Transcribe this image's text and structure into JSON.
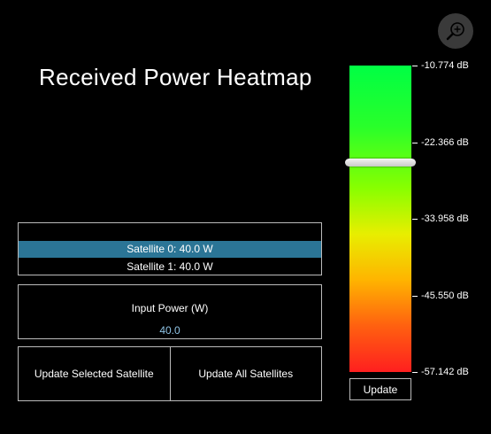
{
  "title": "Received Power Heatmap",
  "zoom": {
    "icon": "zoom-in-icon"
  },
  "satellites": {
    "items": [
      {
        "label": "",
        "selected": false
      },
      {
        "label": "Satellite 0: 40.0 W",
        "selected": true
      },
      {
        "label": "Satellite 1: 40.0 W",
        "selected": false
      }
    ]
  },
  "power": {
    "label": "Input Power (W)",
    "value": "40.0"
  },
  "actions": {
    "update_selected": "Update Selected Satellite",
    "update_all": "Update All Satellites"
  },
  "colorbar": {
    "ticks": [
      "-10.774 dB",
      "-22.366 dB",
      "-33.958 dB",
      "-45.550 dB",
      "-57.142 dB"
    ],
    "max_db": -10.774,
    "min_db": -57.142,
    "handle_db": -25.4,
    "update_label": "Update",
    "colors": [
      "#00ff44",
      "#88ff00",
      "#e8ee00",
      "#ffb400",
      "#ff1f1f"
    ]
  }
}
